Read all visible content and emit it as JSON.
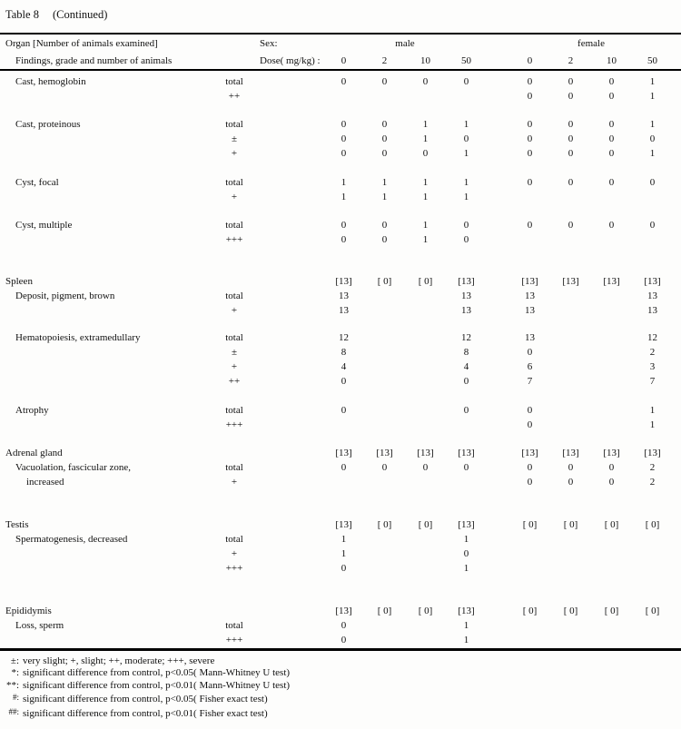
{
  "title": {
    "table_label": "Table 8",
    "continued": "(Continued)"
  },
  "header": {
    "organ_line": "Organ [Number of animals examined]",
    "findings_line": "Findings, grade and number of animals",
    "sex_label": "Sex:",
    "dose_label": "Dose( mg/kg) :",
    "male_label": "male",
    "female_label": "female",
    "doses": [
      "0",
      "2",
      "10",
      "50",
      "0",
      "2",
      "10",
      "50"
    ]
  },
  "rows": [
    {
      "label": "Cast, hemoglobin",
      "indent": 1,
      "grade": "total",
      "values": [
        "0",
        "0",
        "0",
        "0",
        "0",
        "0",
        "0",
        "1"
      ],
      "gap": 0
    },
    {
      "label": "",
      "indent": 1,
      "grade": "++",
      "values": [
        "",
        "",
        "",
        "",
        "0",
        "0",
        "0",
        "1"
      ],
      "gap": 0
    },
    {
      "label": "Cast, proteinous",
      "indent": 1,
      "grade": "total",
      "values": [
        "0",
        "0",
        "1",
        "1",
        "0",
        "0",
        "0",
        "1"
      ],
      "gap": 15
    },
    {
      "label": "",
      "indent": 1,
      "grade": "±",
      "values": [
        "0",
        "0",
        "1",
        "0",
        "0",
        "0",
        "0",
        "0"
      ],
      "gap": 0
    },
    {
      "label": "",
      "indent": 1,
      "grade": "+",
      "values": [
        "0",
        "0",
        "0",
        "1",
        "0",
        "0",
        "0",
        "1"
      ],
      "gap": 0
    },
    {
      "label": "Cyst, focal",
      "indent": 1,
      "grade": "total",
      "values": [
        "1",
        "1",
        "1",
        "1",
        "0",
        "0",
        "0",
        "0"
      ],
      "gap": 16
    },
    {
      "label": "",
      "indent": 1,
      "grade": "+",
      "values": [
        "1",
        "1",
        "1",
        "1",
        "",
        "",
        "",
        ""
      ],
      "gap": 0
    },
    {
      "label": "Cyst, multiple",
      "indent": 1,
      "grade": "total",
      "values": [
        "0",
        "0",
        "1",
        "0",
        "0",
        "0",
        "0",
        "0"
      ],
      "gap": 15
    },
    {
      "label": "",
      "indent": 1,
      "grade": "+++",
      "values": [
        "0",
        "0",
        "1",
        "0",
        "",
        "",
        "",
        ""
      ],
      "gap": 0
    },
    {
      "label": "Spleen",
      "indent": 0,
      "grade": "",
      "values": [
        "[13]",
        "[ 0]",
        "[ 0]",
        "[13]",
        "[13]",
        "[13]",
        "[13]",
        "[13]"
      ],
      "gap": 30
    },
    {
      "label": "Deposit, pigment, brown",
      "indent": 1,
      "grade": "total",
      "values": [
        "13",
        "",
        "",
        "13",
        "13",
        "",
        "",
        "13"
      ],
      "gap": 0
    },
    {
      "label": "",
      "indent": 1,
      "grade": "+",
      "values": [
        "13",
        "",
        "",
        "13",
        "13",
        "",
        "",
        "13"
      ],
      "gap": 0
    },
    {
      "label": "Hematopoiesis, extramedullary",
      "indent": 1,
      "grade": "total",
      "values": [
        "12",
        "",
        "",
        "12",
        "13",
        "",
        "",
        "12"
      ],
      "gap": 14
    },
    {
      "label": "",
      "indent": 1,
      "grade": "±",
      "values": [
        "8",
        "",
        "",
        "8",
        "0",
        "",
        "",
        "2"
      ],
      "gap": 0
    },
    {
      "label": "",
      "indent": 1,
      "grade": "+",
      "values": [
        "4",
        "",
        "",
        "4",
        "6",
        "",
        "",
        "3"
      ],
      "gap": 0
    },
    {
      "label": "",
      "indent": 1,
      "grade": "++",
      "values": [
        "0",
        "",
        "",
        "0",
        "7",
        "",
        "",
        "7"
      ],
      "gap": 0
    },
    {
      "label": "Atrophy",
      "indent": 1,
      "grade": "total",
      "values": [
        "0",
        "",
        "",
        "0",
        "0",
        "",
        "",
        "1"
      ],
      "gap": 16
    },
    {
      "label": "",
      "indent": 1,
      "grade": "+++",
      "values": [
        "",
        "",
        "",
        "",
        "0",
        "",
        "",
        "1"
      ],
      "gap": 0
    },
    {
      "label": "Adrenal gland",
      "indent": 0,
      "grade": "",
      "values": [
        "[13]",
        "[13]",
        "[13]",
        "[13]",
        "[13]",
        "[13]",
        "[13]",
        "[13]"
      ],
      "gap": 15
    },
    {
      "label": "Vacuolation, fascicular zone,",
      "indent": 1,
      "grade": "total",
      "values": [
        "0",
        "0",
        "0",
        "0",
        "0",
        "0",
        "0",
        "2"
      ],
      "gap": 0
    },
    {
      "label": "increased",
      "indent": 2,
      "grade": "+",
      "values": [
        "",
        "",
        "",
        "",
        "0",
        "0",
        "0",
        "2"
      ],
      "gap": 0
    },
    {
      "label": "Testis",
      "indent": 0,
      "grade": "",
      "values": [
        "[13]",
        "[ 0]",
        "[ 0]",
        "[13]",
        "[ 0]",
        "[ 0]",
        "[ 0]",
        "[ 0]"
      ],
      "gap": 31
    },
    {
      "label": "Spermatogenesis, decreased",
      "indent": 1,
      "grade": "total",
      "values": [
        "1",
        "",
        "",
        "1",
        "",
        "",
        "",
        ""
      ],
      "gap": 0
    },
    {
      "label": "",
      "indent": 1,
      "grade": "+",
      "values": [
        "1",
        "",
        "",
        "0",
        "",
        "",
        "",
        ""
      ],
      "gap": 0
    },
    {
      "label": "",
      "indent": 1,
      "grade": "+++",
      "values": [
        "0",
        "",
        "",
        "1",
        "",
        "",
        "",
        ""
      ],
      "gap": 0
    },
    {
      "label": "Epididymis",
      "indent": 0,
      "grade": "",
      "values": [
        "[13]",
        "[ 0]",
        "[ 0]",
        "[13]",
        "[ 0]",
        "[ 0]",
        "[ 0]",
        "[ 0]"
      ],
      "gap": 31
    },
    {
      "label": "Loss, sperm",
      "indent": 1,
      "grade": "total",
      "values": [
        "0",
        "",
        "",
        "1",
        "",
        "",
        "",
        ""
      ],
      "gap": 0
    },
    {
      "label": "",
      "indent": 1,
      "grade": "+++",
      "values": [
        "0",
        "",
        "",
        "1",
        "",
        "",
        "",
        ""
      ],
      "gap": 0
    }
  ],
  "footnotes": [
    {
      "marker": "±:",
      "text": "very slight; +, slight; ++, moderate; +++, severe"
    },
    {
      "marker": "*:",
      "text": "significant difference from control, p<0.05( Mann-Whitney U test)"
    },
    {
      "marker": "**:",
      "text": "significant difference from control, p<0.01( Mann-Whitney U test)"
    },
    {
      "marker": "#:",
      "text": "significant difference from control, p<0.05( Fisher exact test)"
    },
    {
      "marker": "##:",
      "text": "significant difference from control, p<0.01( Fisher exact test)"
    }
  ]
}
